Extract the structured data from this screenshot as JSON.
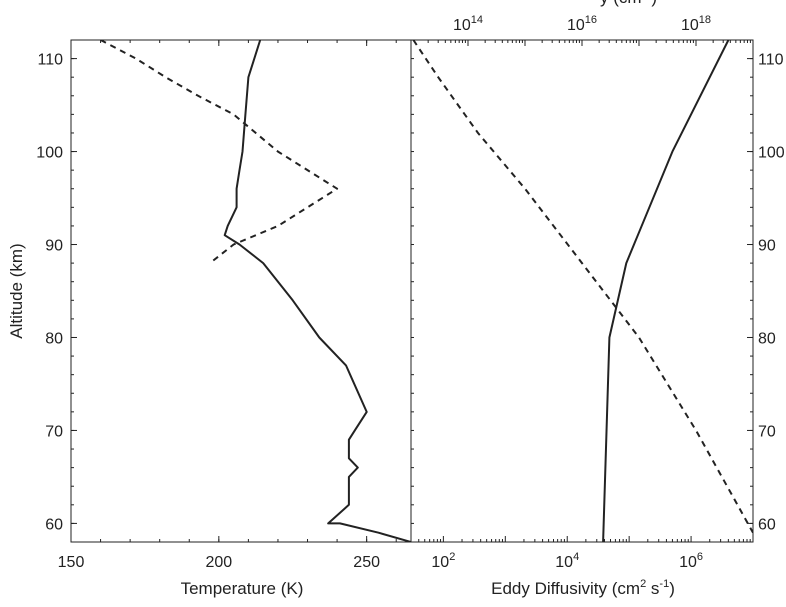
{
  "chart_data": [
    {
      "type": "line",
      "panel": "left",
      "xlabel": "Temperature (K)",
      "ylabel": "Altitude (km)",
      "xlim": [
        150,
        265
      ],
      "ylim": [
        58,
        112
      ],
      "xticks": [
        150,
        200,
        250
      ],
      "yticks": [
        60,
        70,
        80,
        90,
        100,
        110
      ],
      "grid": false,
      "series": [
        {
          "style": "solid",
          "color": "#222222",
          "x": [
            214,
            210,
            209,
            208,
            207,
            206,
            206,
            203,
            202,
            207,
            215,
            225,
            234,
            243,
            250,
            246,
            244,
            244,
            247,
            244,
            244,
            237,
            241,
            254,
            265
          ],
          "y": [
            112,
            108,
            104,
            100,
            98,
            96,
            94,
            92,
            91,
            90,
            88,
            84,
            80,
            77,
            72,
            70,
            69,
            67,
            66,
            65,
            62,
            60,
            60,
            59,
            58
          ]
        },
        {
          "style": "dashed",
          "color": "#222222",
          "x": [
            160,
            172,
            182,
            193,
            205,
            220,
            240,
            220,
            205,
            197
          ],
          "y": [
            112,
            110,
            108,
            106,
            104,
            100,
            96,
            92,
            90,
            88
          ]
        }
      ]
    },
    {
      "type": "line",
      "panel": "right",
      "xscale": "log",
      "xlabel": "Eddy Diffusivity (cm2 s-1)",
      "xlim": [
        30,
        10000000
      ],
      "ylim": [
        58,
        112
      ],
      "xticks": [
        100,
        10000,
        1000000
      ],
      "xtick_labels": [
        {
          "base": "10",
          "exp": "2"
        },
        {
          "base": "10",
          "exp": "4"
        },
        {
          "base": "10",
          "exp": "6"
        }
      ],
      "top_xscale": "log",
      "top_xlabel": "y (cm",
      "top_xlim": [
        10000000000000.0,
        1e+19
      ],
      "top_xticks": [
        100000000000000.0,
        1e+16,
        1e+18
      ],
      "top_xtick_labels": [
        {
          "base": "10",
          "exp": "14"
        },
        {
          "base": "10",
          "exp": "16"
        },
        {
          "base": "10",
          "exp": "18"
        }
      ],
      "right_yticks": [
        60,
        70,
        80,
        90,
        100,
        110
      ],
      "grid": false,
      "series": [
        {
          "style": "solid",
          "axis": "bottom",
          "color": "#222222",
          "x": [
            38000,
            48000,
            90000,
            500000,
            4000000
          ],
          "y": [
            58,
            80,
            88,
            100,
            112
          ]
        },
        {
          "style": "dashed",
          "axis": "top",
          "color": "#222222",
          "x": [
            11000000000000.0,
            30000000000000.0,
            150000000000000.0,
            1000000000000000.0,
            1e+16,
            1e+17,
            1e+18,
            1e+19
          ],
          "y": [
            112,
            108,
            102,
            96,
            88,
            80,
            70,
            59
          ]
        }
      ]
    }
  ]
}
